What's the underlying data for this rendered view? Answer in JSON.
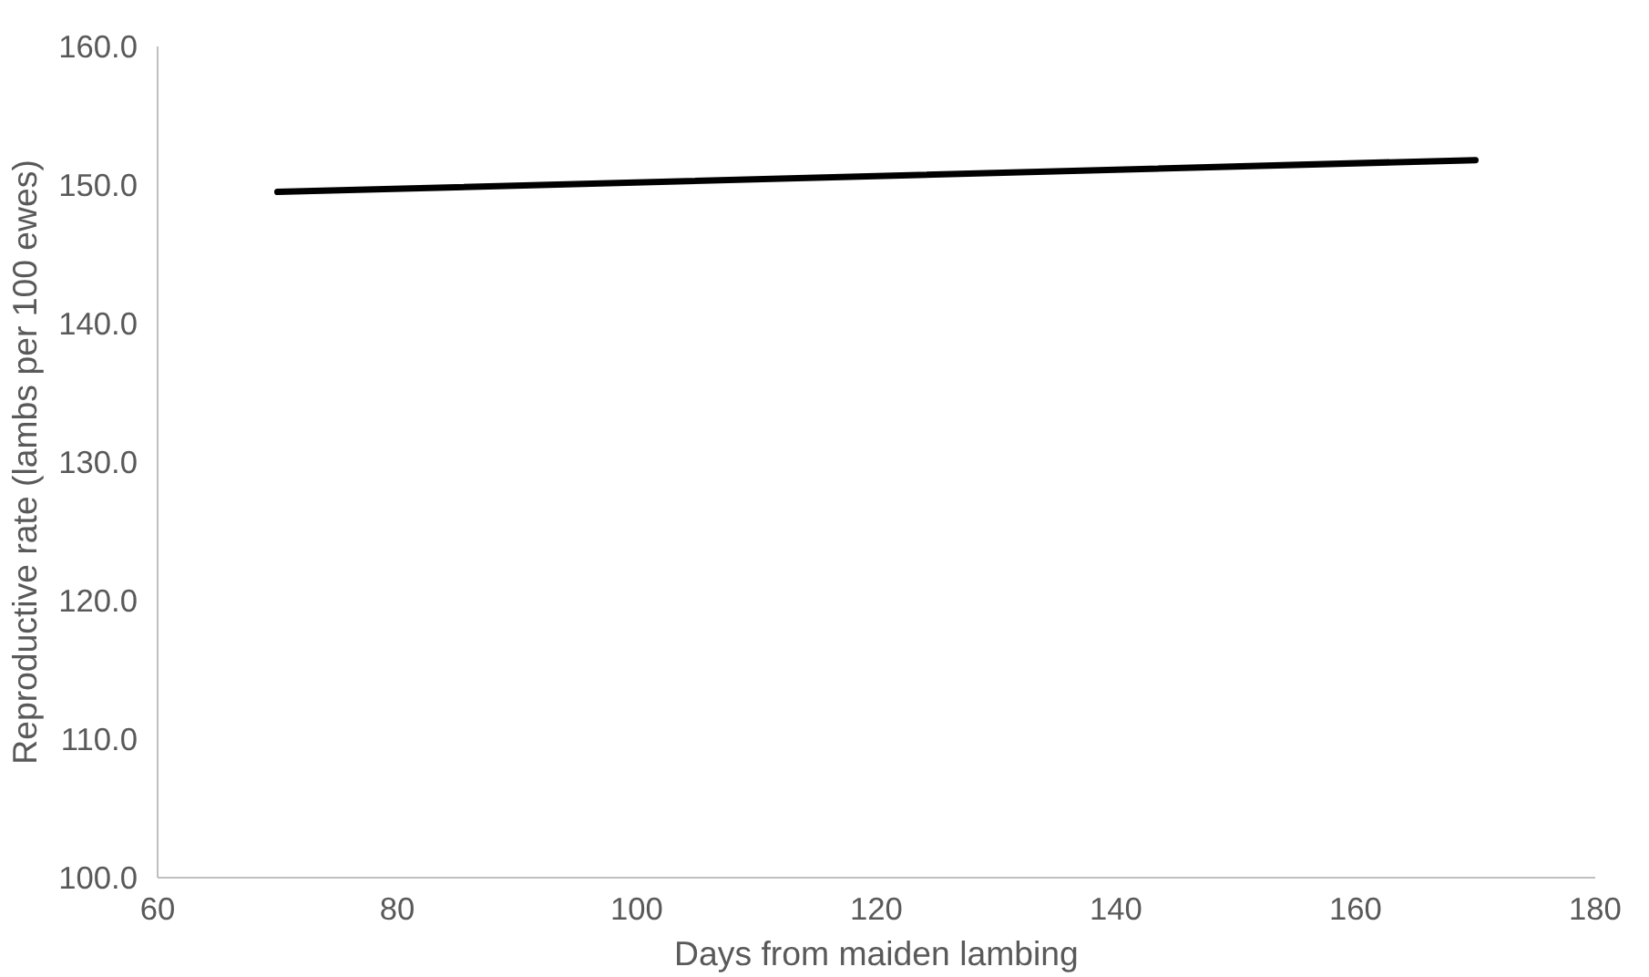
{
  "chart_data": {
    "type": "line",
    "xlabel": "Days from maiden lambing",
    "ylabel": "Reproductive rate (lambs per 100 ewes)",
    "x": [
      70,
      170
    ],
    "series": [
      {
        "color": "#000000",
        "values": [
          149.5,
          151.8
        ]
      }
    ],
    "xlim": [
      60,
      180
    ],
    "xticks": [
      60,
      80,
      100,
      120,
      140,
      160,
      180
    ],
    "ylim": [
      100,
      160
    ],
    "yticks": [
      {
        "value": 100,
        "label": "100.0"
      },
      {
        "value": 110,
        "label": "110.0"
      },
      {
        "value": 120,
        "label": "120.0"
      },
      {
        "value": 130,
        "label": "130.0"
      },
      {
        "value": 140,
        "label": "140.0"
      },
      {
        "value": 150,
        "label": "150.0"
      },
      {
        "value": 160,
        "label": "160.0"
      }
    ],
    "grid": false,
    "marker": "none",
    "line_style": "solid"
  }
}
